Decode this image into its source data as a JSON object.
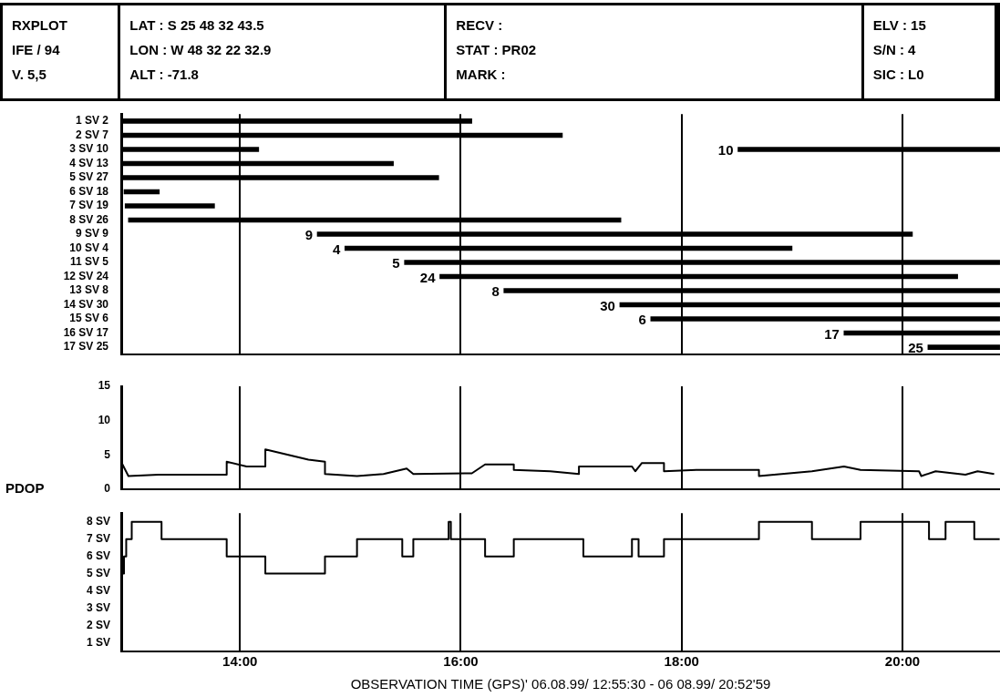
{
  "chart_data": [
    {
      "type": "other",
      "annotations": [
        "RXPLOT",
        "IFE / 94",
        "V. 5,5",
        "LAT : S 25 48 32 43.5",
        "LON : W 48 32 22 32.9",
        "ALT : -71.8",
        "RECV :",
        "STAT : PR02",
        "MARK :",
        "ELV : 15",
        "S/N : 4",
        "SIC : L0"
      ]
    },
    {
      "type": "bar",
      "orientation": "horizontal",
      "categories": [
        "1 SV 2",
        "2 SV 7",
        "3 SV 10",
        "4 SV 13",
        "5 SV 27",
        "6 SV 18",
        "7 SV 19",
        "8 SV 26",
        "9 SV 9",
        "10 SV 4",
        "11 SV 5",
        "12 SV 24",
        "13 SV 8",
        "14 SV 30",
        "15 SV 6",
        "16 SV 17",
        "17 SV 25"
      ],
      "series": [
        {
          "color": "#000000",
          "base": [
            12.93,
            12.93,
            12.93,
            12.93,
            12.93,
            12.95,
            12.96,
            12.99,
            14.7,
            14.95,
            15.49,
            15.81,
            16.39,
            17.44,
            17.72,
            19.47,
            20.23
          ],
          "values": [
            3.17,
            3.99,
            1.24,
            2.46,
            2.87,
            0.32,
            0.81,
            4.46,
            5.39,
            4.05,
            5.39,
            4.69,
            4.49,
            3.44,
            3.16,
            1.41,
            0.65
          ]
        },
        {
          "color": "#000000",
          "base": [
            null,
            null,
            18.51,
            null,
            null,
            null,
            null,
            null,
            null,
            null,
            null,
            null,
            null,
            null,
            null,
            null,
            null
          ],
          "values": [
            null,
            null,
            2.37,
            null,
            null,
            null,
            null,
            null,
            null,
            null,
            null,
            null,
            null,
            null,
            null,
            null,
            null
          ]
        }
      ],
      "xlim": [
        12.925,
        20.883
      ],
      "xticks": [
        14,
        16,
        18,
        20
      ],
      "grid": "x",
      "tick_labels": "y",
      "annotations": [
        {
          "text": "10",
          "x": 18.51,
          "y": "3 SV 10"
        },
        {
          "text": "9",
          "x": 14.7,
          "y": "9 SV 9"
        },
        {
          "text": "4",
          "x": 14.95,
          "y": "10 SV 4"
        },
        {
          "text": "5",
          "x": 15.49,
          "y": "11 SV 5"
        },
        {
          "text": "24",
          "x": 15.81,
          "y": "12 SV 24"
        },
        {
          "text": "8",
          "x": 16.39,
          "y": "13 SV 8"
        },
        {
          "text": "30",
          "x": 17.44,
          "y": "14 SV 30"
        },
        {
          "text": "6",
          "x": 17.72,
          "y": "15 SV 6"
        },
        {
          "text": "17",
          "x": 19.47,
          "y": "16 SV 17"
        },
        {
          "text": "25",
          "x": 20.23,
          "y": "17 SV 25"
        }
      ]
    },
    {
      "type": "line",
      "ylabel": "PDOP",
      "x": [
        12.93,
        12.99,
        13.26,
        13.88,
        13.88,
        14.06,
        14.23,
        14.23,
        14.62,
        14.77,
        14.77,
        15.06,
        15.3,
        15.51,
        15.57,
        16.1,
        16.22,
        16.48,
        16.48,
        16.81,
        17.07,
        17.07,
        17.55,
        17.58,
        17.64,
        17.84,
        17.84,
        18.14,
        18.7,
        18.7,
        19.18,
        19.47,
        19.62,
        20.15,
        20.17,
        20.3,
        20.57,
        20.68,
        20.83
      ],
      "series": [
        {
          "color": "#000000",
          "values": [
            3.8,
            1.9,
            2.1,
            2.1,
            4.0,
            3.3,
            3.3,
            5.8,
            4.3,
            4.0,
            2.2,
            1.9,
            2.2,
            3.0,
            2.2,
            2.3,
            3.6,
            3.6,
            2.8,
            2.6,
            2.2,
            3.3,
            3.3,
            2.6,
            3.8,
            3.8,
            2.6,
            2.8,
            2.8,
            1.9,
            2.6,
            3.3,
            2.8,
            2.6,
            1.9,
            2.6,
            2.1,
            2.6,
            2.2
          ]
        }
      ],
      "xlim": [
        12.925,
        20.883
      ],
      "xticks": [
        14,
        16,
        18,
        20
      ],
      "ylim": [
        0,
        15
      ],
      "yticks": [
        0,
        5,
        10,
        15
      ],
      "grid": "x",
      "tick_labels": "y"
    },
    {
      "type": "step",
      "xlabel": "OBSERVATION TIME (GPS)' 06.08.99/ 12:55:30 - 06 08.99/ 20:52'59",
      "x": [
        12.93,
        12.95,
        12.97,
        13.02,
        13.29,
        13.88,
        14.23,
        14.77,
        15.06,
        15.47,
        15.57,
        15.89,
        15.91,
        16.22,
        16.48,
        17.11,
        17.55,
        17.61,
        17.84,
        18.7,
        19.18,
        19.62,
        20.24,
        20.39,
        20.65,
        20.88
      ],
      "series": [
        {
          "color": "#000000",
          "values": [
            5,
            6,
            7,
            8,
            7,
            6,
            5,
            6,
            7,
            6,
            7,
            8,
            7,
            6,
            7,
            6,
            7,
            6,
            7,
            8,
            7,
            8,
            7,
            8,
            7,
            7
          ]
        }
      ],
      "xlim": [
        12.925,
        20.883
      ],
      "xticks": [
        {
          "value": 14,
          "label": "14:00"
        },
        {
          "value": 16,
          "label": "16:00"
        },
        {
          "value": 18,
          "label": "18:00"
        },
        {
          "value": 20,
          "label": "20:00"
        }
      ],
      "ylim": [
        0.5,
        8.5
      ],
      "yticks": [
        {
          "value": 1,
          "label": "1 SV"
        },
        {
          "value": 2,
          "label": "2 SV"
        },
        {
          "value": 3,
          "label": "3 SV"
        },
        {
          "value": 4,
          "label": "4 SV"
        },
        {
          "value": 5,
          "label": "5 SV"
        },
        {
          "value": 6,
          "label": "6 SV"
        },
        {
          "value": 7,
          "label": "7 SV"
        },
        {
          "value": 8,
          "label": "8 SV"
        }
      ],
      "grid": "x"
    }
  ]
}
